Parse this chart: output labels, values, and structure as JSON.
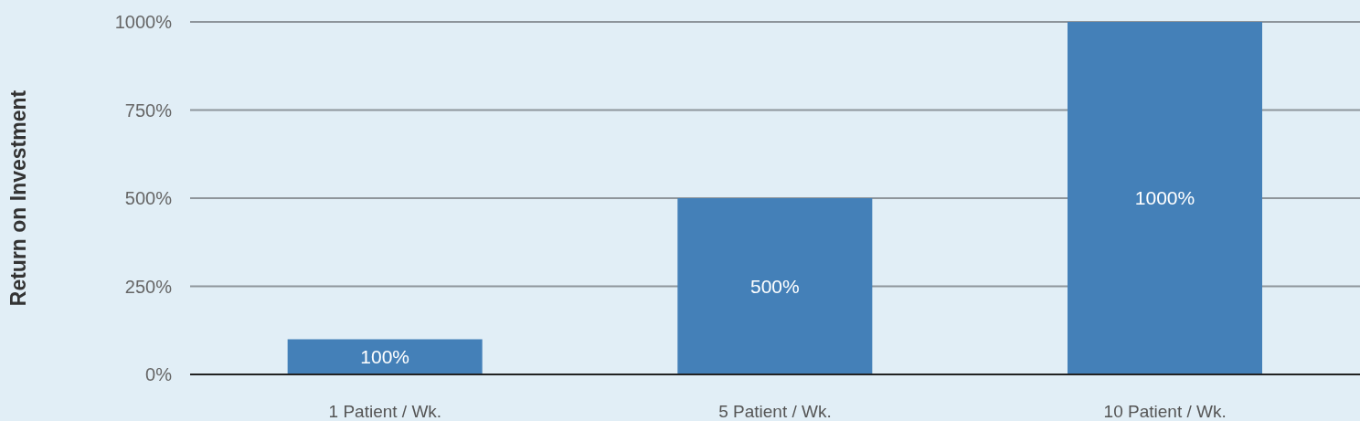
{
  "chart_data": {
    "type": "bar",
    "ylabel": "Return on Investment",
    "categories": [
      "1 Patient / Wk.",
      "5 Patient / Wk.",
      "10 Patient / Wk."
    ],
    "values": [
      100,
      500,
      1000
    ],
    "value_labels": [
      "100%",
      "500%",
      "1000%"
    ],
    "color": "#4480b8",
    "ylim": [
      0,
      1000
    ],
    "yticks": [
      {
        "value": 0,
        "label": "0%"
      },
      {
        "value": 250,
        "label": "250%"
      },
      {
        "value": 500,
        "label": "500%"
      },
      {
        "value": 750,
        "label": "750%"
      },
      {
        "value": 1000,
        "label": "1000%"
      }
    ],
    "grid": "y"
  }
}
